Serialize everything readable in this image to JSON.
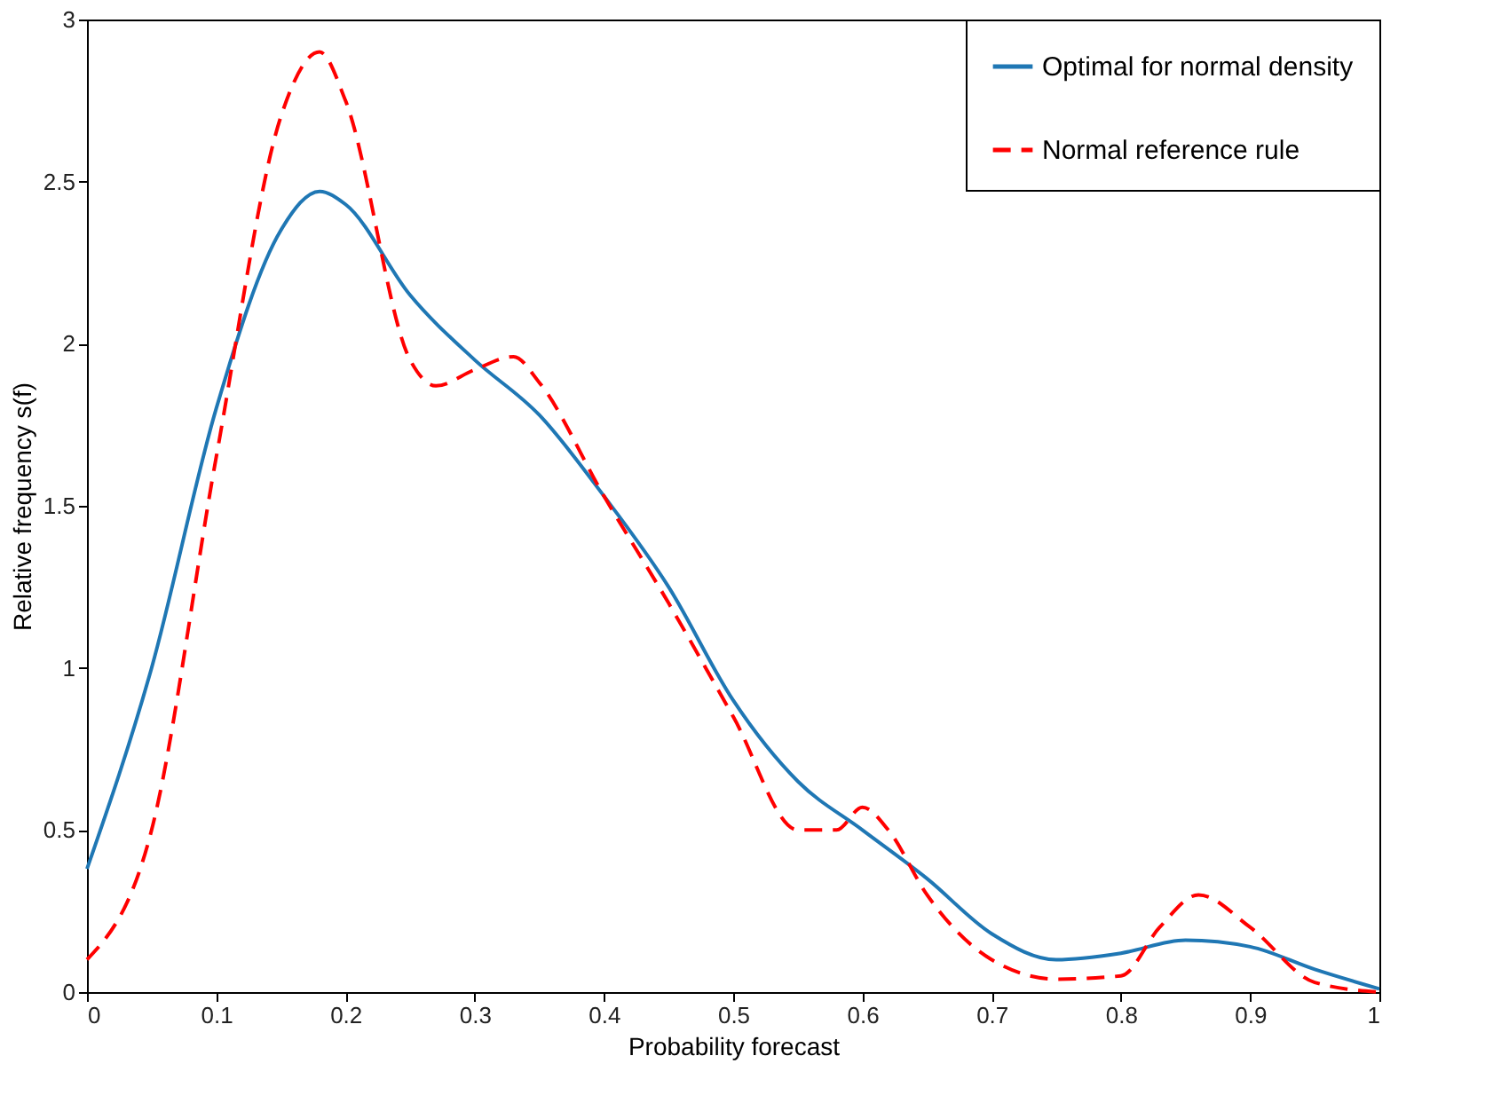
{
  "chart_data": {
    "type": "line",
    "xlabel": "Probability forecast",
    "ylabel": "Relative frequency s(f)",
    "xlim": [
      0,
      1
    ],
    "ylim": [
      0,
      3
    ],
    "xticks": [
      0,
      0.1,
      0.2,
      0.3,
      0.4,
      0.5,
      0.6,
      0.7,
      0.8,
      0.9,
      1
    ],
    "yticks": [
      0,
      0.5,
      1,
      1.5,
      2,
      2.5,
      3
    ],
    "grid": false,
    "legend": "top right",
    "marker": "none",
    "series": [
      {
        "name": "Optimal for normal density",
        "color": "#1f77b4",
        "line_style": "solid",
        "x": [
          0,
          0.05,
          0.1,
          0.15,
          0.18,
          0.2,
          0.25,
          0.3,
          0.35,
          0.4,
          0.45,
          0.5,
          0.55,
          0.6,
          0.65,
          0.7,
          0.75,
          0.8,
          0.85,
          0.9,
          0.95,
          1
        ],
        "values": [
          0.38,
          1.0,
          1.8,
          2.35,
          2.47,
          2.43,
          2.15,
          1.95,
          1.78,
          1.53,
          1.25,
          0.9,
          0.65,
          0.5,
          0.35,
          0.18,
          0.1,
          0.12,
          0.16,
          0.14,
          0.07,
          0.01
        ]
      },
      {
        "name": "Normal reference rule",
        "color": "#ff0000",
        "line_style": "dashed",
        "x": [
          0,
          0.05,
          0.1,
          0.15,
          0.18,
          0.2,
          0.25,
          0.27,
          0.3,
          0.33,
          0.35,
          0.4,
          0.45,
          0.5,
          0.55,
          0.58,
          0.6,
          0.62,
          0.65,
          0.7,
          0.75,
          0.8,
          0.83,
          0.86,
          0.9,
          0.95,
          1
        ],
        "values": [
          0.1,
          0.5,
          1.65,
          2.7,
          2.9,
          2.75,
          1.95,
          1.87,
          1.92,
          1.96,
          1.88,
          1.53,
          1.2,
          0.85,
          0.5,
          0.5,
          0.57,
          0.5,
          0.3,
          0.1,
          0.04,
          0.05,
          0.2,
          0.3,
          0.2,
          0.03,
          0.0
        ]
      }
    ]
  }
}
